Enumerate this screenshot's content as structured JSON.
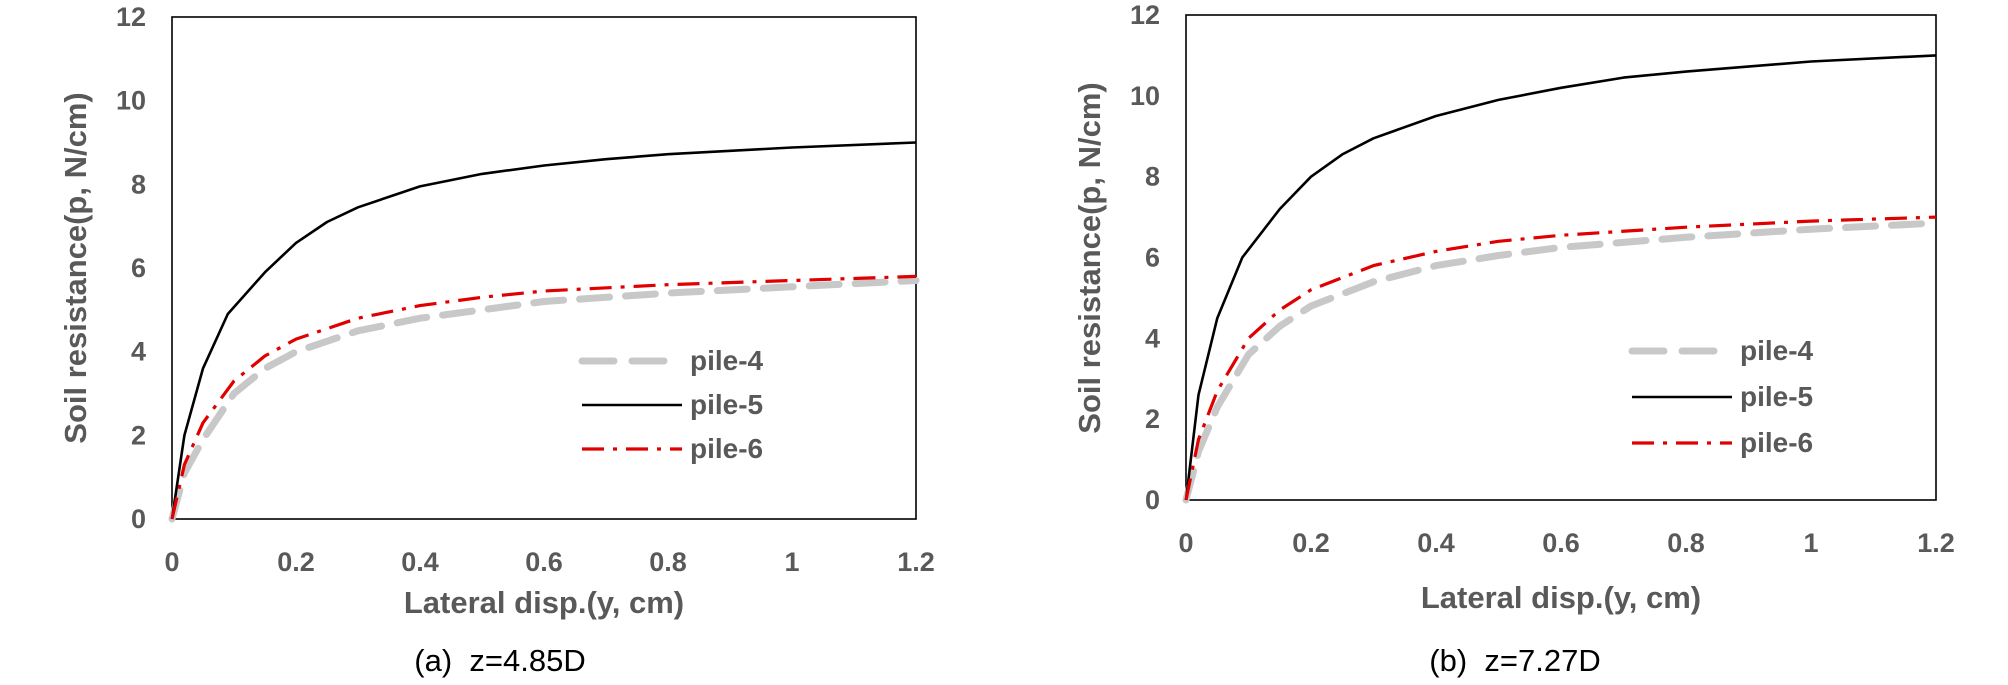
{
  "chart_data": [
    {
      "type": "line",
      "caption": "(a)  z=4.85D",
      "xlabel": "Lateral disp.(y, cm)",
      "ylabel": "Soil resistance(p, N/cm)",
      "xlim": [
        0,
        1.2
      ],
      "ylim": [
        0,
        12
      ],
      "xticks": [
        0,
        0.2,
        0.4,
        0.6,
        0.8,
        1,
        1.2
      ],
      "xtick_labels": [
        "0",
        "0.2",
        "0.4",
        "0.6",
        "0.8",
        "1",
        "1.2"
      ],
      "yticks": [
        0,
        2,
        4,
        6,
        8,
        10,
        12
      ],
      "ytick_labels": [
        "0",
        "2",
        "4",
        "6",
        "8",
        "10",
        "12"
      ],
      "grid": false,
      "legend": "bottom-right",
      "series": [
        {
          "name": "pile-4",
          "color": "#c8c8c8",
          "style": "dashed",
          "x": [
            0,
            0.02,
            0.05,
            0.1,
            0.15,
            0.2,
            0.3,
            0.4,
            0.5,
            0.6,
            0.8,
            1.0,
            1.2
          ],
          "y": [
            0,
            1.1,
            1.9,
            3.0,
            3.6,
            4.0,
            4.5,
            4.8,
            5.0,
            5.2,
            5.4,
            5.55,
            5.7
          ]
        },
        {
          "name": "pile-5",
          "color": "#000000",
          "style": "solid",
          "x": [
            0,
            0.02,
            0.05,
            0.09,
            0.15,
            0.2,
            0.25,
            0.3,
            0.4,
            0.5,
            0.6,
            0.7,
            0.8,
            1.0,
            1.2
          ],
          "y": [
            0,
            2.0,
            3.6,
            4.9,
            5.9,
            6.6,
            7.1,
            7.45,
            7.95,
            8.25,
            8.45,
            8.6,
            8.72,
            8.88,
            9.0
          ]
        },
        {
          "name": "pile-6",
          "color": "#e00000",
          "style": "dashdot",
          "x": [
            0,
            0.02,
            0.05,
            0.1,
            0.15,
            0.2,
            0.3,
            0.4,
            0.5,
            0.6,
            0.8,
            1.0,
            1.2
          ],
          "y": [
            0,
            1.3,
            2.3,
            3.3,
            3.9,
            4.3,
            4.8,
            5.1,
            5.3,
            5.45,
            5.6,
            5.7,
            5.8
          ]
        }
      ]
    },
    {
      "type": "line",
      "caption": "(b)  z=7.27D",
      "xlabel": "Lateral disp.(y, cm)",
      "ylabel": "Soil resistance(p, N/cm)",
      "xlim": [
        0,
        1.2
      ],
      "ylim": [
        0,
        12
      ],
      "xticks": [
        0,
        0.2,
        0.4,
        0.6,
        0.8,
        1,
        1.2
      ],
      "xtick_labels": [
        "0",
        "0.2",
        "0.4",
        "0.6",
        "0.8",
        "1",
        "1.2"
      ],
      "yticks": [
        0,
        2,
        4,
        6,
        8,
        10,
        12
      ],
      "ytick_labels": [
        "0",
        "2",
        "4",
        "6",
        "8",
        "10",
        "12"
      ],
      "grid": false,
      "legend": "bottom-right",
      "series": [
        {
          "name": "pile-4",
          "color": "#c8c8c8",
          "style": "dashed",
          "x": [
            0,
            0.02,
            0.05,
            0.1,
            0.15,
            0.2,
            0.3,
            0.4,
            0.5,
            0.6,
            0.8,
            1.0,
            1.2
          ],
          "y": [
            0,
            1.2,
            2.3,
            3.6,
            4.3,
            4.8,
            5.4,
            5.8,
            6.05,
            6.25,
            6.5,
            6.7,
            6.85
          ]
        },
        {
          "name": "pile-5",
          "color": "#000000",
          "style": "solid",
          "x": [
            0,
            0.02,
            0.05,
            0.09,
            0.15,
            0.2,
            0.25,
            0.3,
            0.4,
            0.5,
            0.6,
            0.7,
            0.8,
            1.0,
            1.2
          ],
          "y": [
            0,
            2.6,
            4.5,
            6.0,
            7.2,
            8.0,
            8.55,
            8.95,
            9.5,
            9.9,
            10.2,
            10.45,
            10.6,
            10.85,
            11.0
          ]
        },
        {
          "name": "pile-6",
          "color": "#e00000",
          "style": "dashdot",
          "x": [
            0,
            0.02,
            0.05,
            0.1,
            0.15,
            0.2,
            0.3,
            0.4,
            0.5,
            0.6,
            0.8,
            1.0,
            1.2
          ],
          "y": [
            0,
            1.5,
            2.7,
            4.0,
            4.7,
            5.2,
            5.8,
            6.15,
            6.4,
            6.55,
            6.75,
            6.9,
            7.0
          ]
        }
      ]
    }
  ]
}
